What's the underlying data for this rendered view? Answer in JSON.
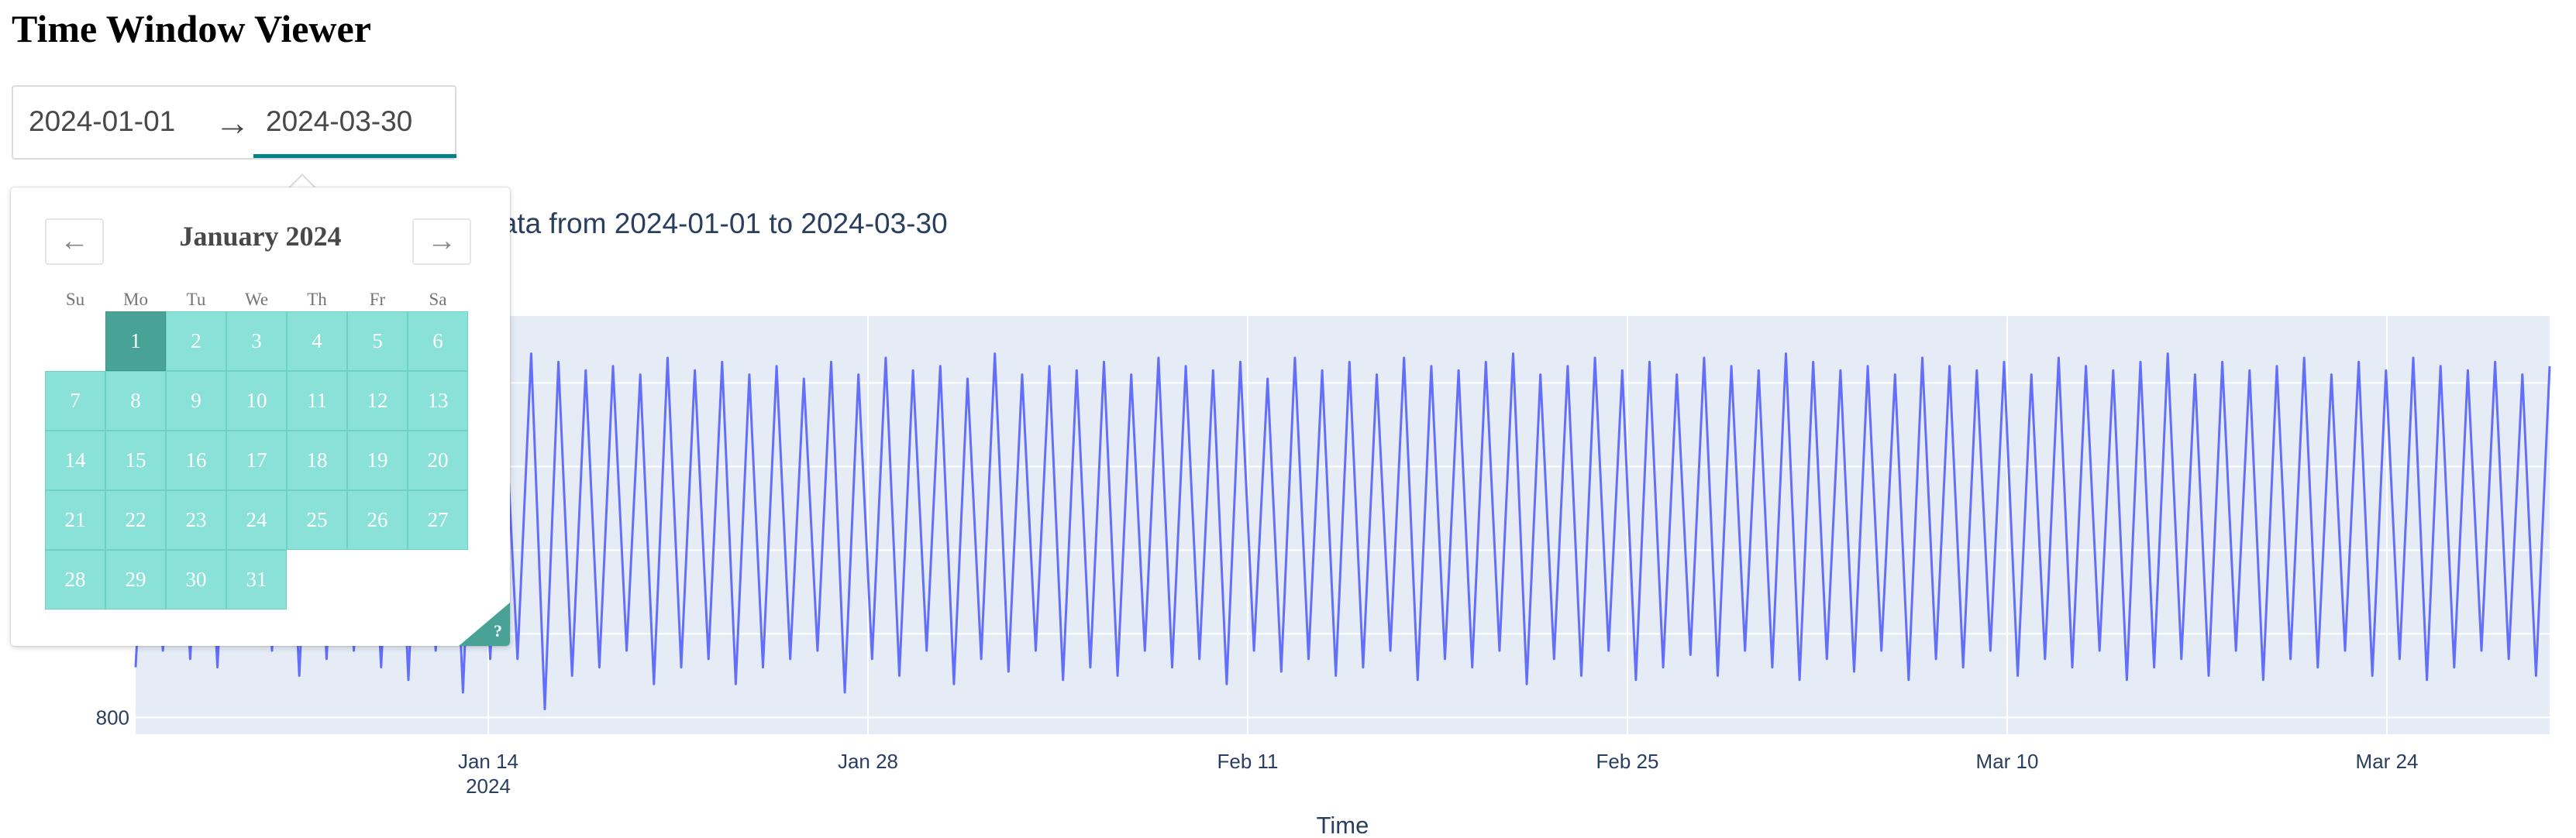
{
  "page": {
    "title": "Time Window Viewer"
  },
  "date_range": {
    "start_value": "2024-01-01",
    "end_value": "2024-03-30",
    "arrow": "→"
  },
  "chart_title": "Data from 2024-01-01 to 2024-03-30",
  "calendar": {
    "month_label": "January 2024",
    "prev_arrow": "←",
    "next_arrow": "→",
    "weekdays": [
      "Su",
      "Mo",
      "Tu",
      "We",
      "Th",
      "Fr",
      "Sa"
    ],
    "first_weekday_index": 1,
    "days_in_month": 31,
    "selected_day": 1,
    "help_label": "?"
  },
  "chart_data": {
    "type": "line",
    "xlabel": "Time",
    "ylabel": "",
    "x_start": "2024-01-01",
    "x_end": "2024-03-30",
    "x_ticks": [
      {
        "date": "2024-01-14",
        "label": "Jan 14",
        "sublabel": "2024"
      },
      {
        "date": "2024-01-28",
        "label": "Jan 28"
      },
      {
        "date": "2024-02-11",
        "label": "Feb 11"
      },
      {
        "date": "2024-02-25",
        "label": "Feb 25"
      },
      {
        "date": "2024-03-10",
        "label": "Mar 10"
      },
      {
        "date": "2024-03-24",
        "label": "Mar 24"
      }
    ],
    "y_ticks": [
      {
        "value": 800,
        "label": "800"
      }
    ],
    "ylim": [
      780,
      1280
    ],
    "grid": true,
    "line_color": "#636efa",
    "series": [
      {
        "values": [
          860,
          1180,
          880,
          1190,
          870,
          1175,
          860,
          1200,
          900,
          1195,
          880,
          1185,
          850,
          1210,
          870,
          1200,
          880,
          1190,
          860,
          1215,
          845,
          1225,
          880,
          1205,
          830,
          1230,
          870,
          1200,
          870,
          1235,
          810,
          1225,
          850,
          1215,
          860,
          1220,
          880,
          1210,
          840,
          1230,
          860,
          1215,
          870,
          1225,
          840,
          1210,
          860,
          1220,
          870,
          1205,
          880,
          1225,
          830,
          1210,
          870,
          1230,
          850,
          1215,
          880,
          1220,
          840,
          1205,
          870,
          1235,
          855,
          1210,
          880,
          1220,
          845,
          1215,
          860,
          1225,
          850,
          1210,
          880,
          1230,
          860,
          1220,
          870,
          1215,
          840,
          1225,
          880,
          1205,
          855,
          1230,
          870,
          1215,
          850,
          1225,
          860,
          1210,
          880,
          1230,
          845,
          1220,
          870,
          1215,
          860,
          1225,
          880,
          1235,
          840,
          1210,
          870,
          1220,
          850,
          1230,
          880,
          1215,
          845,
          1225,
          860,
          1210,
          875,
          1230,
          850,
          1220,
          880,
          1215,
          860,
          1235,
          845,
          1225,
          870,
          1215,
          855,
          1220,
          880,
          1210,
          845,
          1230,
          870,
          1220,
          860,
          1215,
          880,
          1225,
          850,
          1210,
          870,
          1230,
          860,
          1220,
          880,
          1215,
          845,
          1225,
          860,
          1235,
          870,
          1210,
          850,
          1225,
          880,
          1215,
          845,
          1220,
          870,
          1230,
          860,
          1210,
          880,
          1225,
          850,
          1215,
          870,
          1230,
          845,
          1220,
          860,
          1215,
          880,
          1225,
          870,
          1210,
          850,
          1220
        ]
      }
    ]
  }
}
